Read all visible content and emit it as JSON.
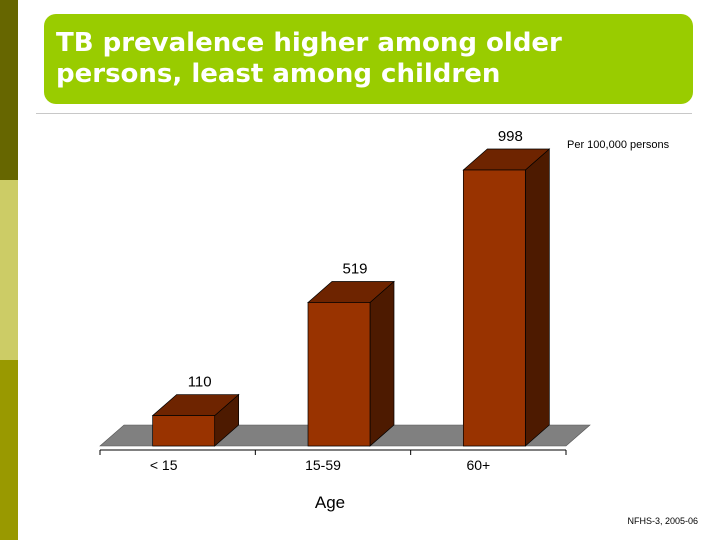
{
  "slide": {
    "title": "TB prevalence higher among older persons, least among children",
    "unit_note": "Per 100,000 persons",
    "source": "NFHS-3, 2005-06"
  },
  "colors": {
    "title_box": "#99cc00",
    "sidebar_top": "#666600",
    "sidebar_mid": "#cccc66",
    "sidebar_bottom": "#999900",
    "bar_front": "#993300",
    "bar_side": "#4d1a00",
    "bar_top": "#6e2400",
    "floor": "#808080"
  },
  "chart_data": {
    "type": "bar",
    "categories": [
      "< 15",
      "15-59",
      "60+"
    ],
    "values": [
      110,
      519,
      998
    ],
    "data_labels": [
      "110",
      "519",
      "998"
    ],
    "title": "TB prevalence higher among older persons, least among children",
    "xlabel": "Age",
    "ylabel": "",
    "ylim": [
      0,
      1000
    ],
    "grid": false,
    "legend": "none",
    "style": "3d-column"
  }
}
